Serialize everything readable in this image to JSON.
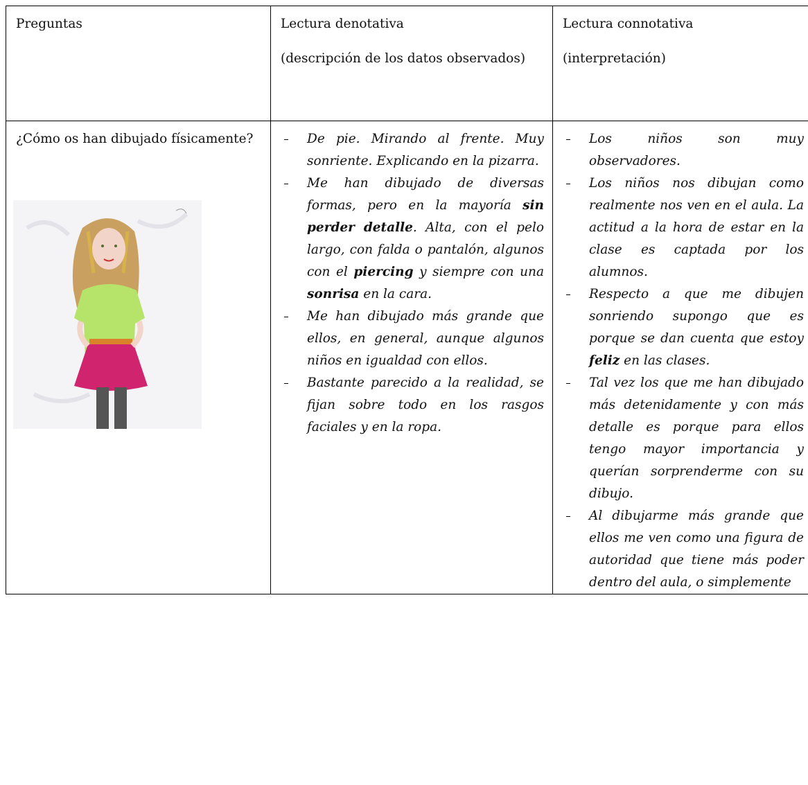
{
  "table": {
    "header": [
      [
        "Preguntas"
      ],
      [
        "Lectura denotativa",
        "(descripción de los datos observados)"
      ],
      [
        "Lectura connotativa",
        "(interpretación)"
      ]
    ],
    "rows": [
      {
        "question": "¿Cómo os han dibujado físicamente?",
        "denotative": [
          [
            "De pie. Mirando al frente. Muy sonriente. Explicando en la pizarra."
          ],
          [
            "Me han dibujado de diversas formas, pero en la mayoría ",
            {
              "text": "sin perder detalle",
              "bold": true
            },
            ". Alta, con el pelo largo, con falda o pantalón, algunos con el ",
            {
              "text": "piercing",
              "bold": true
            },
            " y siempre con una ",
            {
              "text": "sonrisa",
              "bold": true
            },
            " en la cara."
          ],
          [
            "Me han dibujado más grande que ellos, en general, aunque algunos niños en igualdad con ellos."
          ],
          [
            "Bastante parecido a la realidad, se fijan sobre todo en los rasgos faciales y en la ropa."
          ]
        ],
        "connotative": [
          [
            "Los niños son muy observadores."
          ],
          [
            "Los niños nos dibujan como realmente nos ven en el aula. La actitud a la hora de estar en la clase es captada por los alumnos."
          ],
          [
            "Respecto a que me dibujen sonriendo supongo que es porque se dan cuenta que estoy ",
            {
              "text": "feliz",
              "bold": true
            },
            " en las clases."
          ],
          [
            "Tal vez los que me han dibujado más detenidamente y con más detalle es porque para ellos tengo mayor importancia y querían sorprenderme con su dibujo."
          ],
          [
            "Al dibujarme más grande que ellos me ven como una figura de autoridad que tiene más poder dentro del aula, o simplemente"
          ]
        ]
      }
    ]
  }
}
